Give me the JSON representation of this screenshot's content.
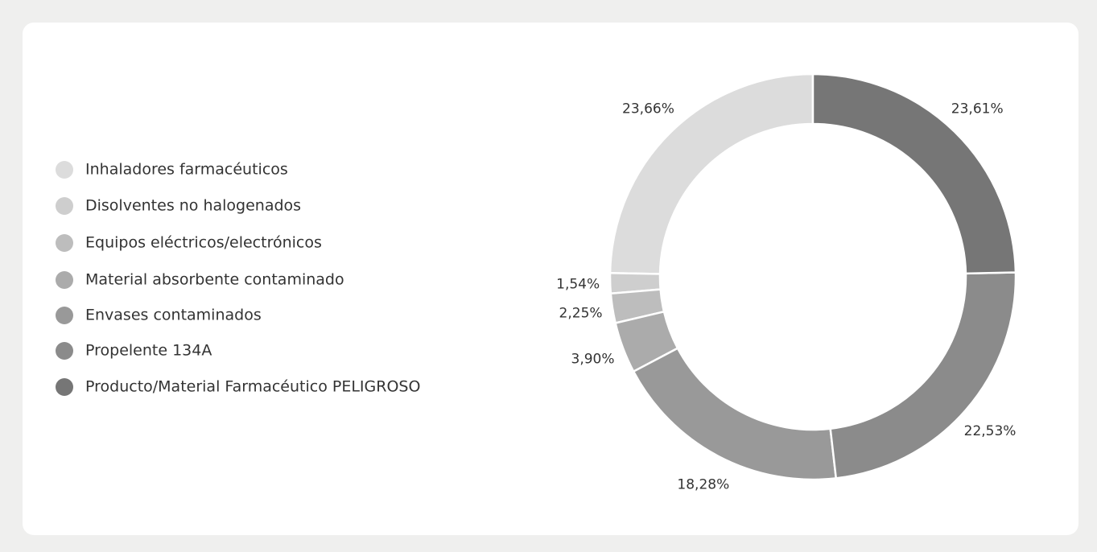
{
  "chart_data": {
    "type": "donut",
    "categories": [
      "Inhaladores farmacéuticos",
      "Disolventes no halogenados",
      "Equipos eléctricos/electrónicos",
      "Material absorbente contaminado",
      "Envases contaminados",
      "Propelente 134A",
      "Producto/Material Farmacéutico PELIGROSO"
    ],
    "values": [
      23.66,
      1.54,
      2.25,
      3.9,
      18.28,
      22.53,
      23.61
    ],
    "value_labels": [
      "23,66%",
      "1,54%",
      "2,25%",
      "3,90%",
      "18,28%",
      "22,53%",
      "23,61%"
    ],
    "colors": [
      "#dcdcdc",
      "#cecece",
      "#bdbdbd",
      "#ababab",
      "#999999",
      "#8b8b8b",
      "#767676"
    ],
    "legend": "left"
  }
}
